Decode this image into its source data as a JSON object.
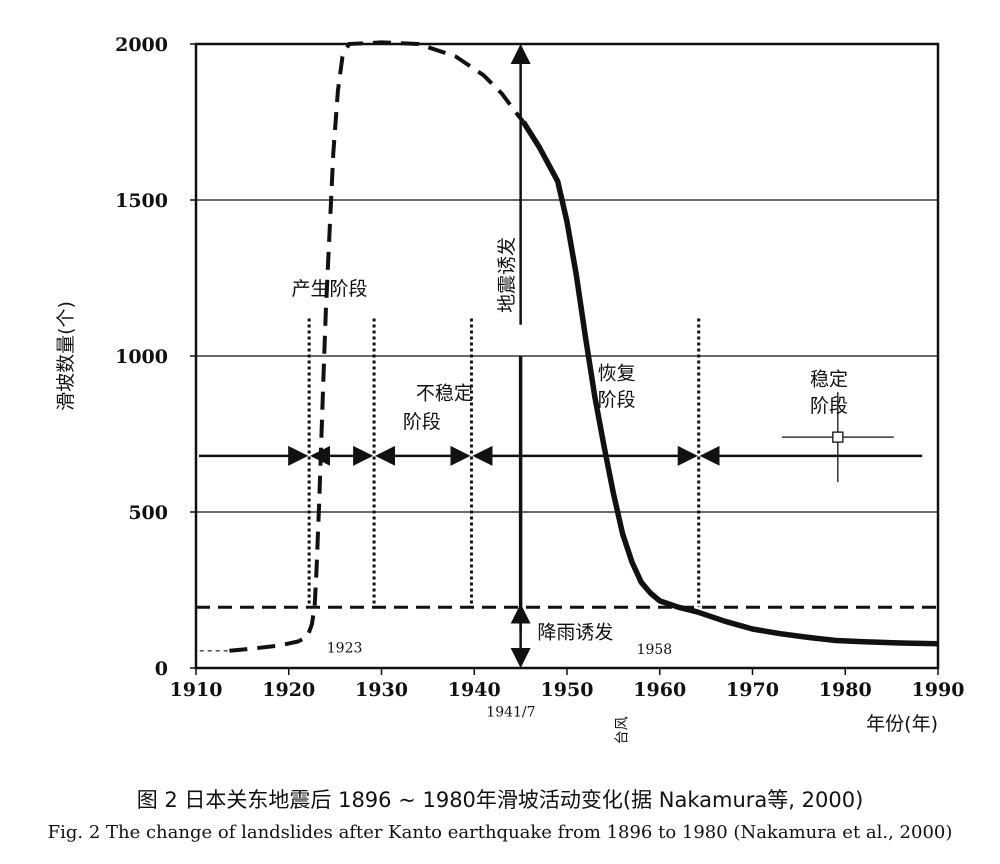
{
  "chart_data": {
    "type": "line",
    "xlabel": "年份(年)",
    "ylabel": "滑坡数量(个)",
    "xlim": [
      1910,
      1990
    ],
    "ylim": [
      0,
      2000
    ],
    "x_ticks": [
      1910,
      1920,
      1930,
      1940,
      1950,
      1960,
      1970,
      1980,
      1990
    ],
    "y_ticks": [
      0,
      500,
      1000,
      1500,
      2000
    ],
    "y_gridlines": [
      500,
      1000,
      1500
    ],
    "grid": "horizontal",
    "series": [
      {
        "style": "dotted-thin",
        "points": [
          [
            1910.4,
            55
          ],
          [
            1913.6,
            55
          ]
        ]
      },
      {
        "style": "dashed",
        "points": [
          [
            1913.6,
            55
          ],
          [
            1916,
            62
          ],
          [
            1919,
            72
          ],
          [
            1921,
            85
          ],
          [
            1922,
            100
          ],
          [
            1922.5,
            140
          ],
          [
            1922.8,
            200
          ],
          [
            1923,
            320
          ],
          [
            1923.3,
            550
          ],
          [
            1923.7,
            900
          ],
          [
            1924,
            1150
          ],
          [
            1924.4,
            1400
          ],
          [
            1924.8,
            1650
          ],
          [
            1925.3,
            1850
          ],
          [
            1925.8,
            1960
          ],
          [
            1926.5,
            2000
          ],
          [
            1930,
            2005
          ],
          [
            1934,
            2000
          ],
          [
            1938,
            1960
          ],
          [
            1941,
            1900
          ],
          [
            1943,
            1840
          ],
          [
            1944.5,
            1780
          ],
          [
            1945.3,
            1750
          ]
        ]
      },
      {
        "style": "solid-thick",
        "points": [
          [
            1945.3,
            1750
          ],
          [
            1947,
            1670
          ],
          [
            1949,
            1560
          ],
          [
            1950,
            1430
          ],
          [
            1951,
            1260
          ],
          [
            1952,
            1060
          ],
          [
            1953,
            870
          ],
          [
            1954,
            710
          ],
          [
            1955,
            560
          ],
          [
            1956,
            430
          ],
          [
            1957,
            340
          ],
          [
            1958,
            275
          ],
          [
            1959,
            240
          ],
          [
            1960,
            215
          ],
          [
            1962,
            195
          ],
          [
            1964,
            180
          ],
          [
            1967,
            150
          ],
          [
            1970,
            125
          ],
          [
            1973,
            110
          ],
          [
            1976,
            98
          ],
          [
            1979,
            88
          ],
          [
            1982,
            84
          ],
          [
            1986,
            80
          ],
          [
            1990,
            78
          ]
        ]
      },
      {
        "style": "dashed-horizontal",
        "points": [
          [
            1910,
            195
          ],
          [
            1990,
            195
          ]
        ]
      }
    ],
    "stage_lines_x": [
      1922.2,
      1929.2,
      1939.7,
      1964.2
    ],
    "trigger_line_x": 1945,
    "stage_arrow_y": 680,
    "annotations": [
      {
        "text": "产生阶段",
        "x": 1920.3,
        "y": 1195
      },
      {
        "text": "不稳定",
        "x": 1933.7,
        "y": 860
      },
      {
        "text": "阶段",
        "x": 1932.3,
        "y": 770
      },
      {
        "text": "恢复",
        "x": 1953.3,
        "y": 925
      },
      {
        "text": "阶段",
        "x": 1953.3,
        "y": 840
      },
      {
        "text": "稳定",
        "x": 1976.2,
        "y": 905
      },
      {
        "text": "阶段",
        "x": 1976.2,
        "y": 820
      },
      {
        "text": "地震诱发",
        "x": 1944.2,
        "y": 1260,
        "vertical": true
      },
      {
        "text": "降雨诱发",
        "x": 1946.8,
        "y": 95
      },
      {
        "text": "1923",
        "x": 1924.1,
        "y": 50,
        "small": true
      },
      {
        "text": "1958",
        "x": 1957.5,
        "y": 45,
        "small": true
      },
      {
        "text": "1941/7",
        "x": 1941.3,
        "y": -155,
        "small": true
      },
      {
        "text": "台风",
        "x": 1956.4,
        "y": -200,
        "small": true,
        "vertical": true
      }
    ],
    "marker": {
      "x": 1979.2,
      "y": 740
    }
  },
  "caption": {
    "zh": "图 2 日本关东地震后 1896 ~ 1980年滑坡活动变化(据 Nakamura等, 2000)",
    "en": "Fig. 2 The change of landslides after Kanto earthquake from 1896 to 1980 (Nakamura et al., 2000)"
  }
}
